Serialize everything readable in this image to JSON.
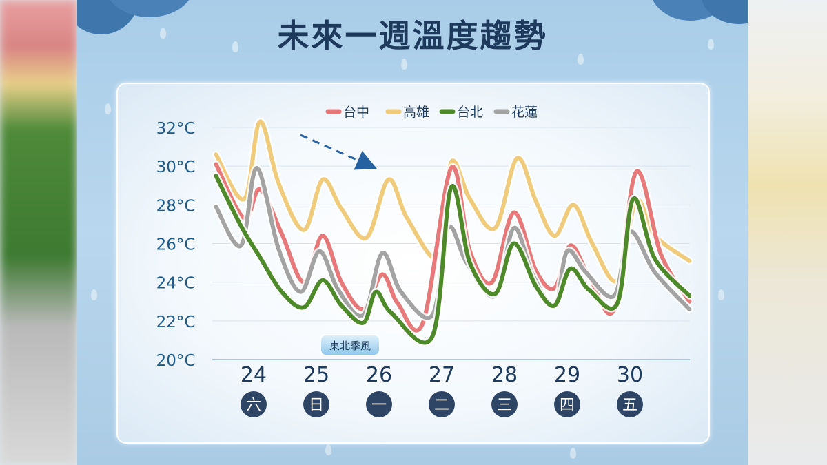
{
  "title": "未來一週溫度趨勢",
  "annotation": "東北季風",
  "chart_data": {
    "type": "line",
    "title": "未來一週溫度趨勢",
    "ylim": [
      20,
      32
    ],
    "y_ticks": [
      "20°C",
      "22°C",
      "24°C",
      "26°C",
      "28°C",
      "30°C",
      "32°C"
    ],
    "y_tick_values": [
      20,
      22,
      24,
      26,
      28,
      30,
      32
    ],
    "x_dates": [
      "24",
      "25",
      "26",
      "27",
      "28",
      "29",
      "30"
    ],
    "x_weekdays": [
      "六",
      "日",
      "一",
      "二",
      "三",
      "四",
      "五"
    ],
    "legend_position": "top-center",
    "x_range": [
      23.4,
      31.0
    ],
    "series": [
      {
        "name": "台中",
        "color": "#e8797b",
        "points": [
          [
            23.4,
            30.1
          ],
          [
            23.85,
            27.3
          ],
          [
            24.1,
            28.8
          ],
          [
            24.45,
            26.5
          ],
          [
            24.8,
            24.0
          ],
          [
            25.1,
            26.4
          ],
          [
            25.4,
            24.0
          ],
          [
            25.75,
            22.6
          ],
          [
            26.05,
            24.4
          ],
          [
            26.3,
            22.9
          ],
          [
            26.7,
            21.9
          ],
          [
            27.15,
            29.9
          ],
          [
            27.45,
            25.6
          ],
          [
            27.8,
            24.0
          ],
          [
            28.15,
            27.6
          ],
          [
            28.5,
            24.6
          ],
          [
            28.8,
            23.7
          ],
          [
            29.05,
            25.9
          ],
          [
            29.35,
            24.3
          ],
          [
            29.75,
            22.6
          ],
          [
            30.1,
            29.7
          ],
          [
            30.5,
            25.4
          ],
          [
            30.95,
            23.0
          ]
        ]
      },
      {
        "name": "高雄",
        "color": "#f1cb7c",
        "points": [
          [
            23.4,
            30.6
          ],
          [
            23.85,
            28.3
          ],
          [
            24.1,
            32.3
          ],
          [
            24.4,
            29.1
          ],
          [
            24.8,
            26.7
          ],
          [
            25.1,
            29.3
          ],
          [
            25.4,
            27.8
          ],
          [
            25.8,
            26.3
          ],
          [
            26.15,
            29.3
          ],
          [
            26.45,
            27.3
          ],
          [
            26.95,
            25.3
          ],
          [
            27.15,
            30.2
          ],
          [
            27.45,
            28.3
          ],
          [
            27.85,
            26.8
          ],
          [
            28.2,
            30.4
          ],
          [
            28.5,
            28.2
          ],
          [
            28.8,
            26.4
          ],
          [
            29.1,
            28.0
          ],
          [
            29.4,
            26.0
          ],
          [
            29.8,
            24.1
          ],
          [
            30.1,
            28.2
          ],
          [
            30.4,
            26.4
          ],
          [
            30.95,
            25.1
          ]
        ]
      },
      {
        "name": "台北",
        "color": "#4f8a2a",
        "points": [
          [
            23.4,
            29.5
          ],
          [
            23.8,
            26.9
          ],
          [
            24.1,
            25.3
          ],
          [
            24.45,
            23.5
          ],
          [
            24.8,
            22.7
          ],
          [
            25.1,
            24.1
          ],
          [
            25.4,
            22.8
          ],
          [
            25.75,
            21.9
          ],
          [
            25.95,
            23.5
          ],
          [
            26.2,
            22.4
          ],
          [
            26.85,
            21.2
          ],
          [
            27.15,
            28.9
          ],
          [
            27.45,
            25.0
          ],
          [
            27.85,
            23.4
          ],
          [
            28.15,
            26.0
          ],
          [
            28.5,
            23.8
          ],
          [
            28.8,
            22.8
          ],
          [
            29.05,
            24.7
          ],
          [
            29.35,
            23.6
          ],
          [
            29.8,
            22.9
          ],
          [
            30.05,
            28.3
          ],
          [
            30.4,
            25.2
          ],
          [
            30.95,
            23.3
          ]
        ]
      },
      {
        "name": "花蓮",
        "color": "#a3a3a3",
        "points": [
          [
            23.4,
            27.9
          ],
          [
            23.8,
            25.9
          ],
          [
            24.05,
            29.9
          ],
          [
            24.4,
            25.7
          ],
          [
            24.75,
            23.5
          ],
          [
            25.05,
            25.6
          ],
          [
            25.35,
            23.6
          ],
          [
            25.75,
            22.3
          ],
          [
            26.05,
            25.5
          ],
          [
            26.35,
            23.5
          ],
          [
            26.85,
            22.3
          ],
          [
            27.1,
            26.8
          ],
          [
            27.4,
            25.0
          ],
          [
            27.85,
            23.3
          ],
          [
            28.15,
            26.8
          ],
          [
            28.45,
            24.4
          ],
          [
            28.8,
            22.8
          ],
          [
            29.0,
            25.6
          ],
          [
            29.3,
            24.5
          ],
          [
            29.75,
            23.3
          ],
          [
            30.0,
            26.6
          ],
          [
            30.4,
            24.5
          ],
          [
            30.95,
            22.6
          ]
        ]
      }
    ]
  }
}
